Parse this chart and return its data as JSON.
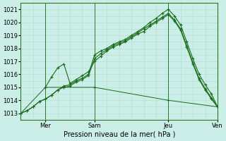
{
  "xlabel": "Pression niveau de la mer( hPa )",
  "bg_color": "#cceee8",
  "grid_color": "#aaddcc",
  "line_color": "#1a6b1a",
  "ylim": [
    1012.5,
    1021.5
  ],
  "xlim": [
    0,
    96
  ],
  "yticks": [
    1013,
    1014,
    1015,
    1016,
    1017,
    1018,
    1019,
    1020,
    1021
  ],
  "xtick_labels": [
    "Mer",
    "Sam",
    "Jeu",
    "Ven"
  ],
  "xtick_positions": [
    12,
    36,
    72,
    96
  ],
  "vline_positions": [
    12,
    36,
    72,
    96
  ],
  "line1_x": [
    0,
    3,
    6,
    9,
    12,
    15,
    18,
    21,
    24,
    27,
    30,
    33,
    36,
    39,
    42,
    45,
    48,
    51,
    54,
    57,
    60,
    63,
    66,
    69,
    72,
    75,
    78,
    81,
    84,
    87,
    90,
    93,
    96
  ],
  "line1_y": [
    1013.0,
    1013.2,
    1013.5,
    1013.9,
    1014.1,
    1014.4,
    1014.8,
    1015.1,
    1015.2,
    1015.5,
    1015.7,
    1016.0,
    1017.5,
    1017.8,
    1018.0,
    1018.3,
    1018.5,
    1018.7,
    1019.0,
    1019.3,
    1019.6,
    1020.0,
    1020.3,
    1020.7,
    1021.0,
    1020.5,
    1019.8,
    1018.5,
    1017.2,
    1016.0,
    1015.2,
    1014.5,
    1013.5
  ],
  "line2_x": [
    0,
    3,
    6,
    9,
    12,
    15,
    18,
    21,
    24,
    27,
    30,
    33,
    36,
    39,
    42,
    45,
    48,
    51,
    54,
    57,
    60,
    63,
    66,
    69,
    72,
    75,
    78,
    81,
    84,
    87,
    90,
    93,
    96
  ],
  "line2_y": [
    1013.0,
    1013.2,
    1013.5,
    1013.9,
    1014.1,
    1014.4,
    1014.8,
    1015.0,
    1015.1,
    1015.4,
    1015.6,
    1015.9,
    1017.2,
    1017.6,
    1017.9,
    1018.2,
    1018.4,
    1018.6,
    1018.9,
    1019.2,
    1019.5,
    1019.8,
    1020.1,
    1020.4,
    1020.7,
    1020.2,
    1019.5,
    1018.2,
    1016.9,
    1015.7,
    1014.9,
    1014.2,
    1013.5
  ],
  "line3_x": [
    12,
    15,
    18,
    21,
    24,
    27,
    30,
    33,
    36,
    39,
    42,
    45,
    48,
    51,
    54,
    57,
    60,
    63,
    66,
    69,
    72,
    75,
    78,
    81,
    84,
    87,
    90,
    93,
    96
  ],
  "line3_y": [
    1015.0,
    1015.8,
    1016.5,
    1016.8,
    1015.3,
    1015.6,
    1015.9,
    1016.2,
    1017.0,
    1017.4,
    1017.8,
    1018.1,
    1018.3,
    1018.5,
    1018.8,
    1019.1,
    1019.3,
    1019.7,
    1020.0,
    1020.3,
    1020.6,
    1020.1,
    1019.4,
    1018.1,
    1016.8,
    1015.6,
    1014.8,
    1014.1,
    1013.5
  ],
  "line_flat_x": [
    0,
    12,
    36,
    72,
    96
  ],
  "line_flat_y": [
    1013.0,
    1015.0,
    1015.0,
    1014.0,
    1013.5
  ]
}
